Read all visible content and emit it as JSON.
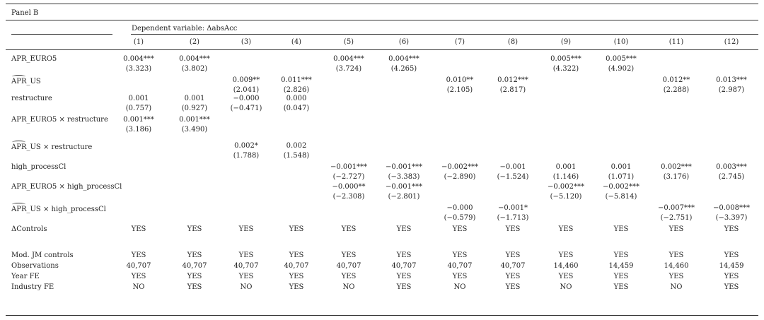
{
  "panel_title": "Panel B",
  "dep_var_label": "Dependent variable: ΔabsAcc",
  "columns": [
    "(1)",
    "(2)",
    "(3)",
    "(4)",
    "(5)",
    "(6)",
    "(7)",
    "(8)",
    "(9)",
    "(10)",
    "(11)",
    "(12)"
  ],
  "rows": [
    {
      "label": "APR_EURO5",
      "hat": "",
      "coef": [
        "0.004***",
        "0.004***",
        "",
        "",
        "0.004***",
        "0.004***",
        "",
        "",
        "0.005***",
        "0.005***",
        "",
        ""
      ],
      "tstat": [
        "(3.323)",
        "(3.802)",
        "",
        "",
        "(3.724)",
        "(4.265)",
        "",
        "",
        "(4.322)",
        "(4.902)",
        "",
        ""
      ]
    },
    {
      "label": "_US",
      "hat": "APR",
      "coef": [
        "",
        "",
        "0.009**",
        "0.011***",
        "",
        "",
        "0.010**",
        "0.012***",
        "",
        "",
        "0.012**",
        "0.013***"
      ],
      "tstat": [
        "",
        "",
        "(2.041)",
        "(2.826)",
        "",
        "",
        "(2.105)",
        "(2.817)",
        "",
        "",
        "(2.288)",
        "(2.987)"
      ]
    },
    {
      "label": "restructure",
      "hat": "",
      "coef": [
        "0.001",
        "0.001",
        "−0.000",
        "0.000",
        "",
        "",
        "",
        "",
        "",
        "",
        "",
        ""
      ],
      "tstat": [
        "(0.757)",
        "(0.927)",
        "(−0.471)",
        "(0.047)",
        "",
        "",
        "",
        "",
        "",
        "",
        "",
        ""
      ]
    },
    {
      "label": "APR_EURO5 × restructure",
      "hat": "",
      "coef": [
        "0.001***",
        "0.001***",
        "",
        "",
        "",
        "",
        "",
        "",
        "",
        "",
        "",
        ""
      ],
      "tstat": [
        "(3.186)",
        "(3.490)",
        "",
        "",
        "",
        "",
        "",
        "",
        "",
        "",
        "",
        ""
      ]
    },
    {
      "label": "_US × restructure",
      "hat": "APR",
      "coef": [
        "",
        "",
        "0.002*",
        "0.002",
        "",
        "",
        "",
        "",
        "",
        "",
        "",
        ""
      ],
      "tstat": [
        "",
        "",
        "(1.788)",
        "(1.548)",
        "",
        "",
        "",
        "",
        "",
        "",
        "",
        ""
      ]
    },
    {
      "label": "high_processCl",
      "hat": "",
      "coef": [
        "",
        "",
        "",
        "",
        "−0.001***",
        "−0.001***",
        "−0.002***",
        "−0.001",
        "0.001",
        "0.001",
        "0.002***",
        "0.003***"
      ],
      "tstat": [
        "",
        "",
        "",
        "",
        "(−2.727)",
        "(−3.383)",
        "(−2.890)",
        "(−1.524)",
        "(1.146)",
        "(1.071)",
        "(3.176)",
        "(2.745)"
      ]
    },
    {
      "label": "APR_EURO5 × high_processCl",
      "hat": "",
      "coef": [
        "",
        "",
        "",
        "",
        "−0.000**",
        "−0.001***",
        "",
        "",
        "−0.002***",
        "−0.002***",
        "",
        ""
      ],
      "tstat": [
        "",
        "",
        "",
        "",
        "(−2.308)",
        "(−2.801)",
        "",
        "",
        "(−5.120)",
        "(−5.814)",
        "",
        ""
      ]
    },
    {
      "label": "_US × high_processCl",
      "hat": "APR",
      "coef": [
        "",
        "",
        "",
        "",
        "",
        "",
        "−0.000",
        "−0.001*",
        "",
        "",
        "−0.007***",
        "−0.008***"
      ],
      "tstat": [
        "",
        "",
        "",
        "",
        "",
        "",
        "(−0.579)",
        "(−1.713)",
        "",
        "",
        "(−2.751)",
        "(−3.397)"
      ]
    }
  ],
  "controls_rows": [
    {
      "label": "ΔControls",
      "values": [
        "YES",
        "YES",
        "YES",
        "YES",
        "YES",
        "YES",
        "YES",
        "YES",
        "YES",
        "YES",
        "YES",
        "YES"
      ]
    },
    {
      "label": "Mod. JM controls",
      "values": [
        "YES",
        "YES",
        "YES",
        "YES",
        "YES",
        "YES",
        "YES",
        "YES",
        "YES",
        "YES",
        "YES",
        "YES"
      ]
    },
    {
      "label": "Observations",
      "values": [
        "40,707",
        "40,707",
        "40,707",
        "40,707",
        "40,707",
        "40,707",
        "40,707",
        "40,707",
        "14,460",
        "14,459",
        "14,460",
        "14,459"
      ]
    },
    {
      "label": "Year FE",
      "values": [
        "YES",
        "YES",
        "YES",
        "YES",
        "YES",
        "YES",
        "YES",
        "YES",
        "YES",
        "YES",
        "YES",
        "YES"
      ]
    },
    {
      "label": "Industry FE",
      "values": [
        "NO",
        "YES",
        "NO",
        "YES",
        "NO",
        "YES",
        "NO",
        "YES",
        "NO",
        "YES",
        "NO",
        "YES"
      ]
    }
  ]
}
